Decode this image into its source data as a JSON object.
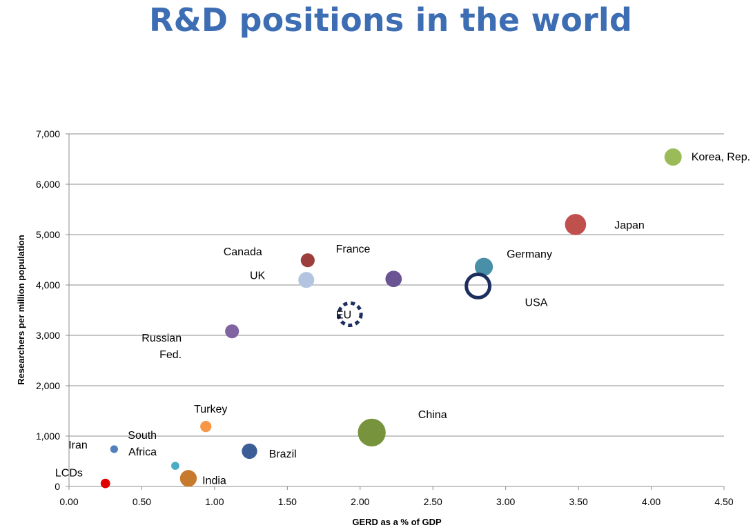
{
  "title": "R&D positions in the world",
  "chart_data": {
    "type": "scatter",
    "bubble": true,
    "title": "R&D positions in the world",
    "xlabel": "GERD as a % of GDP",
    "ylabel": "Researchers per million population",
    "xlim": [
      0,
      4.5
    ],
    "ylim": [
      0,
      7000
    ],
    "xticks": [
      0,
      0.5,
      1,
      1.5,
      2,
      2.5,
      3,
      3.5,
      4,
      4.5
    ],
    "xtick_labels": [
      "0.00",
      "0.50",
      "1.00",
      "1.50",
      "2.00",
      "2.50",
      "3.00",
      "3.50",
      "4.00",
      "4.50"
    ],
    "yticks": [
      0,
      1000,
      2000,
      3000,
      4000,
      5000,
      6000,
      7000
    ],
    "ytick_labels": [
      "0",
      "1,000",
      "2,000",
      "3,000",
      "4,000",
      "5,000",
      "6,000",
      "7,000"
    ],
    "grid": true,
    "points": [
      {
        "name": "Korea, Rep.",
        "x": 4.15,
        "y": 6540,
        "size": 1.0,
        "color": "#9bbb59",
        "style": "fill",
        "label_lines": [
          "Korea, Rep."
        ],
        "label_anchor": "right"
      },
      {
        "name": "Japan",
        "x": 3.48,
        "y": 5200,
        "size": 1.5,
        "color": "#c0504d",
        "style": "fill",
        "label_lines": [
          "Japan"
        ],
        "label_anchor": "right-far"
      },
      {
        "name": "Germany",
        "x": 2.85,
        "y": 4360,
        "size": 1.1,
        "color": "#4a8fa8",
        "style": "fill",
        "label_lines": [
          "Germany"
        ],
        "label_anchor": "upper-right"
      },
      {
        "name": "USA",
        "x": 2.81,
        "y": 3980,
        "size": 2.55,
        "color": "#1c2e5e",
        "style": "ring",
        "label_lines": [
          "USA"
        ],
        "label_anchor": "lower-right"
      },
      {
        "name": "France",
        "x": 2.23,
        "y": 4120,
        "size": 0.9,
        "color": "#6b5494",
        "style": "fill",
        "label_lines": [
          "France"
        ],
        "label_anchor": "upper-left"
      },
      {
        "name": "EU",
        "x": 1.93,
        "y": 3420,
        "size": 2.1,
        "color": "#1c2e5e",
        "style": "dashed-ring",
        "label_lines": [
          "EU"
        ],
        "label_anchor": "center"
      },
      {
        "name": "Canada",
        "x": 1.64,
        "y": 4490,
        "size": 0.65,
        "color": "#9c3e3c",
        "style": "fill",
        "label_lines": [
          "Canada"
        ],
        "label_anchor": "upper-left"
      },
      {
        "name": "UK",
        "x": 1.63,
        "y": 4100,
        "size": 0.85,
        "color": "#b3c4e0",
        "style": "fill",
        "label_lines": [
          "UK"
        ],
        "label_anchor": "left"
      },
      {
        "name": "Russian Fed.",
        "x": 1.12,
        "y": 3080,
        "size": 0.65,
        "color": "#8064a2",
        "style": "fill",
        "label_lines": [
          "Russian",
          "Fed."
        ],
        "label_anchor": "lower-left"
      },
      {
        "name": "China",
        "x": 2.08,
        "y": 1070,
        "size": 2.6,
        "color": "#77933c",
        "style": "fill",
        "label_lines": [
          "China"
        ],
        "label_anchor": "upper-right"
      },
      {
        "name": "Turkey",
        "x": 0.94,
        "y": 1190,
        "size": 0.42,
        "color": "#f79646",
        "style": "fill",
        "label_lines": [
          "Turkey"
        ],
        "label_anchor": "above"
      },
      {
        "name": "Brazil",
        "x": 1.24,
        "y": 700,
        "size": 0.8,
        "color": "#3c5e96",
        "style": "fill",
        "label_lines": [
          "Brazil"
        ],
        "label_anchor": "lower-right"
      },
      {
        "name": "Iran",
        "x": 0.31,
        "y": 740,
        "size": 0.2,
        "color": "#4f81bd",
        "style": "fill",
        "label_lines": [
          "Iran"
        ],
        "label_anchor": "left"
      },
      {
        "name": "South Africa",
        "x": 0.73,
        "y": 410,
        "size": 0.22,
        "color": "#4bacc6",
        "style": "fill",
        "label_lines": [
          "South",
          "Africa"
        ],
        "label_anchor": "upper-left"
      },
      {
        "name": "India",
        "x": 0.82,
        "y": 160,
        "size": 0.95,
        "color": "#c77a2e",
        "style": "fill",
        "label_lines": [
          "India"
        ],
        "label_anchor": "lower-right"
      },
      {
        "name": "LCDs",
        "x": 0.25,
        "y": 60,
        "size": 0.3,
        "color": "#e00000",
        "style": "fill",
        "label_lines": [
          "LCDs"
        ],
        "label_anchor": "upper-left"
      }
    ]
  }
}
